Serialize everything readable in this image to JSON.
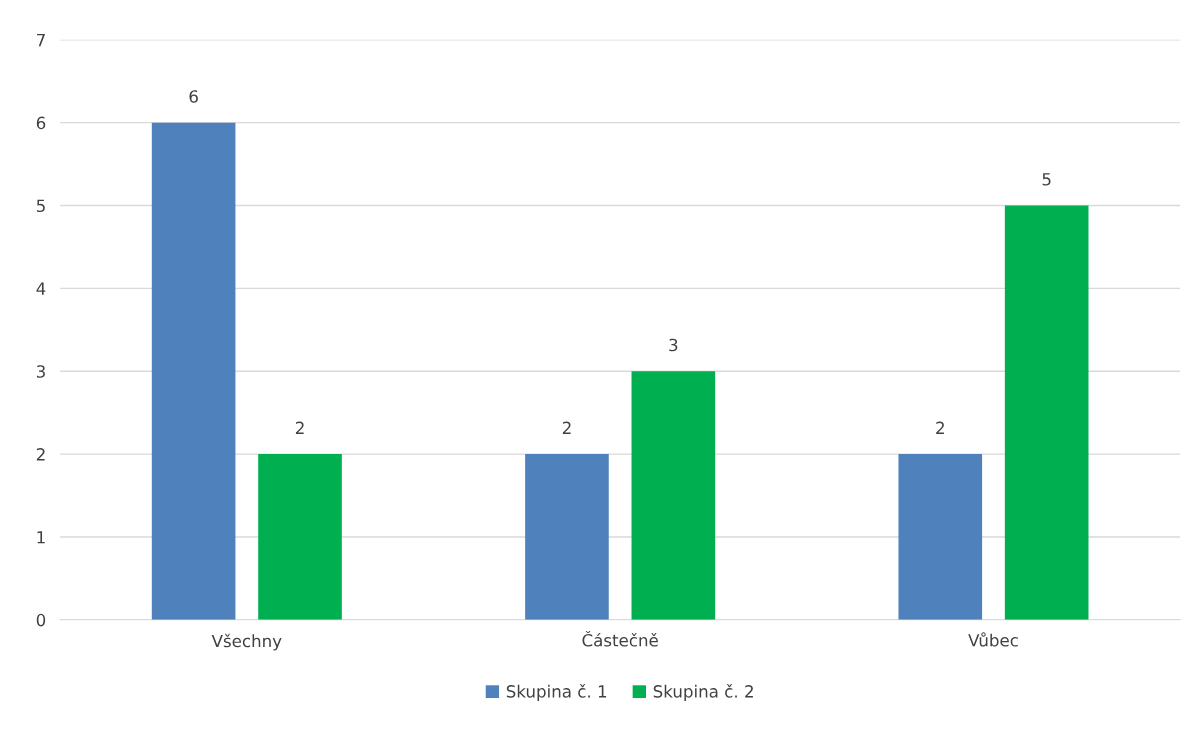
{
  "chart_data": {
    "type": "bar",
    "categories": [
      "Všechny",
      "Částečně",
      "Vůbec"
    ],
    "series": [
      {
        "name": "Skupina č. 1",
        "color": "#4f81bd",
        "values": [
          6,
          2,
          2
        ]
      },
      {
        "name": "Skupina č. 2",
        "color": "#00b050",
        "values": [
          2,
          3,
          5
        ]
      }
    ],
    "ylim": [
      0,
      7
    ],
    "yticks": [
      0,
      1,
      2,
      3,
      4,
      5,
      6,
      7
    ],
    "grid": "y",
    "legend": "bottom",
    "data_labels": true
  }
}
